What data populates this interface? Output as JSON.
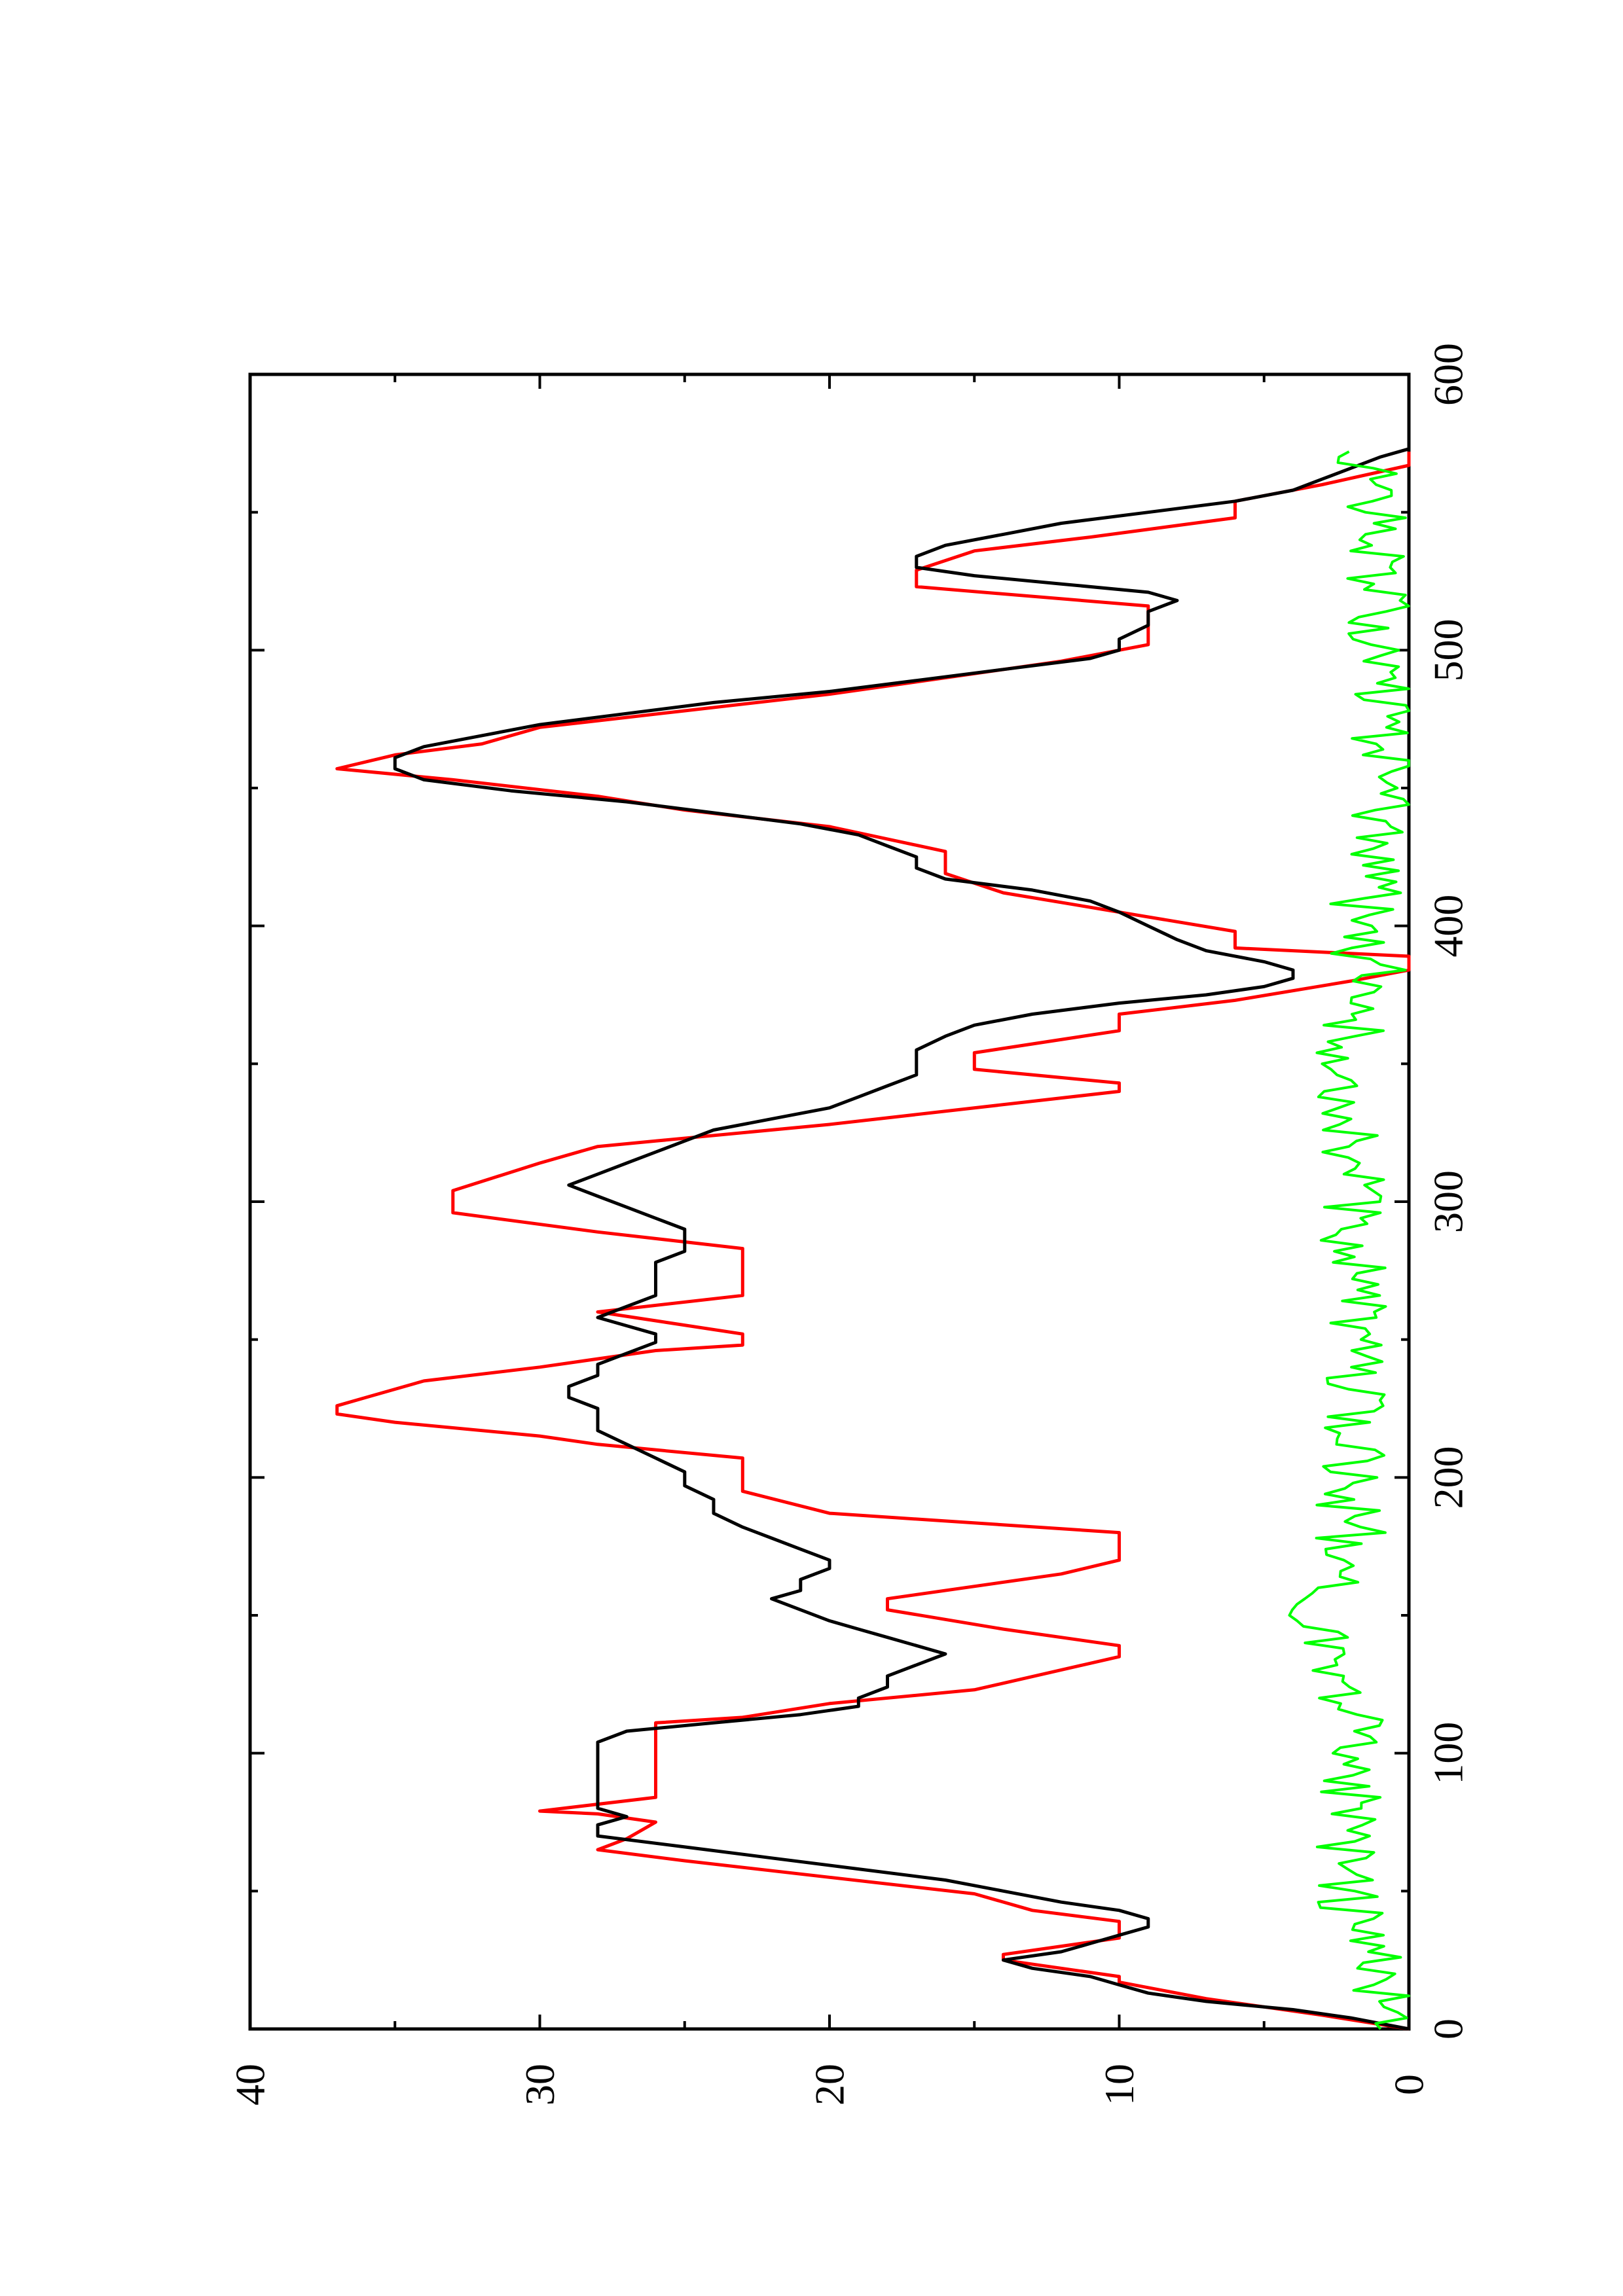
{
  "chart_data": {
    "type": "line",
    "title": "",
    "xlabel": "",
    "ylabel": "",
    "xlim": [
      0,
      600
    ],
    "ylim": [
      0,
      40
    ],
    "x_ticks_major": [
      0,
      100,
      200,
      300,
      400,
      500,
      600
    ],
    "x_ticks_minor": [
      50,
      150,
      250,
      350,
      450,
      550
    ],
    "y_ticks_major": [
      0,
      10,
      20,
      30,
      40
    ],
    "y_ticks_minor": [
      5,
      15,
      25,
      35
    ],
    "x_tick_labels": [
      "0",
      "100",
      "200",
      "300",
      "400",
      "500",
      "600"
    ],
    "y_tick_labels": [
      "0",
      "10",
      "20",
      "30",
      "40"
    ],
    "grid": false,
    "legend": "none",
    "orientation": "page rotated 90 degrees counter-clockwise",
    "series": [
      {
        "color": "#ff0000",
        "style": "step-segments",
        "x": [
          0,
          5,
          11,
          17,
          19,
          25,
          27,
          33,
          39,
          43,
          49,
          55,
          61,
          65,
          69,
          75,
          78,
          79,
          84,
          85,
          90,
          111,
          113,
          118,
          123,
          135,
          139,
          145,
          152,
          156,
          165,
          170,
          180,
          187,
          195,
          204,
          207,
          212,
          215,
          220,
          223,
          226,
          229,
          235,
          240,
          246,
          248,
          252,
          260,
          266,
          273,
          283,
          289,
          296,
          304,
          314,
          320,
          322,
          328,
          340,
          343,
          348,
          354,
          362,
          368,
          373,
          380,
          384,
          389,
          392,
          398,
          405,
          412,
          419,
          427,
          436,
          442,
          447,
          453,
          457,
          462,
          466,
          472,
          478,
          484,
          490,
          496,
          502,
          516,
          523,
          529,
          536,
          541,
          548,
          554,
          560,
          567,
          572
        ],
        "y": [
          0,
          3,
          7,
          10,
          10,
          14,
          14,
          10,
          10,
          13,
          15,
          20,
          25,
          28,
          27,
          26,
          28,
          30,
          26,
          26,
          26,
          26,
          23,
          20,
          15,
          10,
          10,
          14,
          18,
          18,
          12,
          10,
          10,
          20,
          23,
          23,
          23,
          28,
          30,
          35,
          37,
          37,
          36,
          34,
          30,
          26,
          23,
          23,
          28,
          23,
          23,
          23,
          28,
          33,
          33,
          30,
          28,
          26,
          20,
          10,
          10,
          15,
          15,
          10,
          10,
          6,
          2,
          0,
          0,
          6,
          6,
          10,
          14,
          16,
          16,
          20,
          25,
          28,
          33,
          37,
          35,
          32,
          30,
          25,
          20,
          16,
          12,
          9,
          9,
          17,
          17,
          15,
          11,
          6,
          6,
          3,
          0,
          0
        ]
      },
      {
        "color": "#000000",
        "style": "line",
        "x": [
          0,
          4,
          7,
          10,
          13,
          16,
          19,
          22,
          25,
          28,
          31,
          34,
          37,
          40,
          43,
          46,
          50,
          54,
          58,
          62,
          66,
          70,
          74,
          77,
          80,
          83,
          87,
          92,
          98,
          104,
          108,
          111,
          114,
          117,
          120,
          124,
          128,
          132,
          136,
          139,
          142,
          145,
          148,
          152,
          156,
          159,
          163,
          167,
          170,
          174,
          178,
          182,
          187,
          192,
          197,
          202,
          207,
          212,
          217,
          221,
          225,
          229,
          233,
          237,
          241,
          245,
          249,
          252,
          255,
          258,
          262,
          266,
          270,
          274,
          278,
          282,
          286,
          290,
          294,
          298,
          302,
          306,
          310,
          314,
          318,
          322,
          326,
          330,
          334,
          338,
          342,
          346,
          350,
          355,
          360,
          364,
          368,
          372,
          375,
          378,
          381,
          384,
          387,
          391,
          395,
          400,
          405,
          409,
          413,
          417,
          421,
          425,
          429,
          433,
          437,
          441,
          445,
          449,
          453,
          457,
          461,
          465,
          469,
          473,
          477,
          481,
          485,
          489,
          493,
          497,
          500,
          504,
          509,
          514,
          518,
          521,
          524,
          527,
          530,
          534,
          538,
          542,
          546,
          550,
          554,
          558,
          562,
          566,
          570,
          573
        ],
        "y": [
          0,
          2,
          4,
          7,
          9,
          10,
          11,
          13,
          14,
          12,
          11,
          10,
          9,
          9,
          10,
          12,
          14,
          16,
          19,
          22,
          25,
          28,
          28,
          27,
          28,
          28,
          28,
          28,
          28,
          28,
          27,
          24,
          21,
          19,
          19,
          18,
          18,
          17,
          16,
          17,
          18,
          19,
          20,
          21,
          22,
          21,
          21,
          20,
          20,
          21,
          22,
          23,
          24,
          24,
          25,
          25,
          26,
          27,
          28,
          28,
          28,
          29,
          29,
          28,
          28,
          27,
          26,
          26,
          27,
          28,
          27,
          26,
          26,
          26,
          26,
          25,
          25,
          25,
          26,
          27,
          28,
          29,
          28,
          27,
          26,
          25,
          24,
          22,
          20,
          19,
          18,
          17,
          17,
          17,
          16,
          15,
          13,
          10,
          7,
          5,
          4,
          4,
          5,
          7,
          8,
          9,
          10,
          11,
          13,
          16,
          17,
          17,
          18,
          19,
          21,
          24,
          27,
          31,
          34,
          35,
          35,
          34,
          32,
          30,
          27,
          24,
          20,
          17,
          14,
          11,
          10,
          10,
          9,
          9,
          8,
          9,
          12,
          15,
          17,
          17,
          16,
          14,
          12,
          9,
          6,
          4,
          3,
          2,
          1,
          0
        ]
      },
      {
        "color": "#00ff00",
        "style": "noisy-line",
        "x_range": [
          0,
          572
        ],
        "y_range": [
          0,
          5
        ],
        "description_points_x": [
          0,
          20,
          40,
          60,
          80,
          100,
          120,
          140,
          160,
          180,
          200,
          220,
          240,
          260,
          280,
          300,
          320,
          340,
          360,
          380,
          400,
          420,
          440,
          460,
          480,
          500,
          520,
          540,
          560,
          572
        ],
        "description_points_y": [
          1,
          1,
          2,
          2,
          2,
          2,
          2,
          3,
          3,
          2,
          2,
          2,
          2,
          2,
          2,
          2,
          2,
          2,
          2,
          1,
          2,
          1,
          1,
          1,
          1,
          1,
          1,
          1,
          1,
          2
        ]
      }
    ]
  }
}
